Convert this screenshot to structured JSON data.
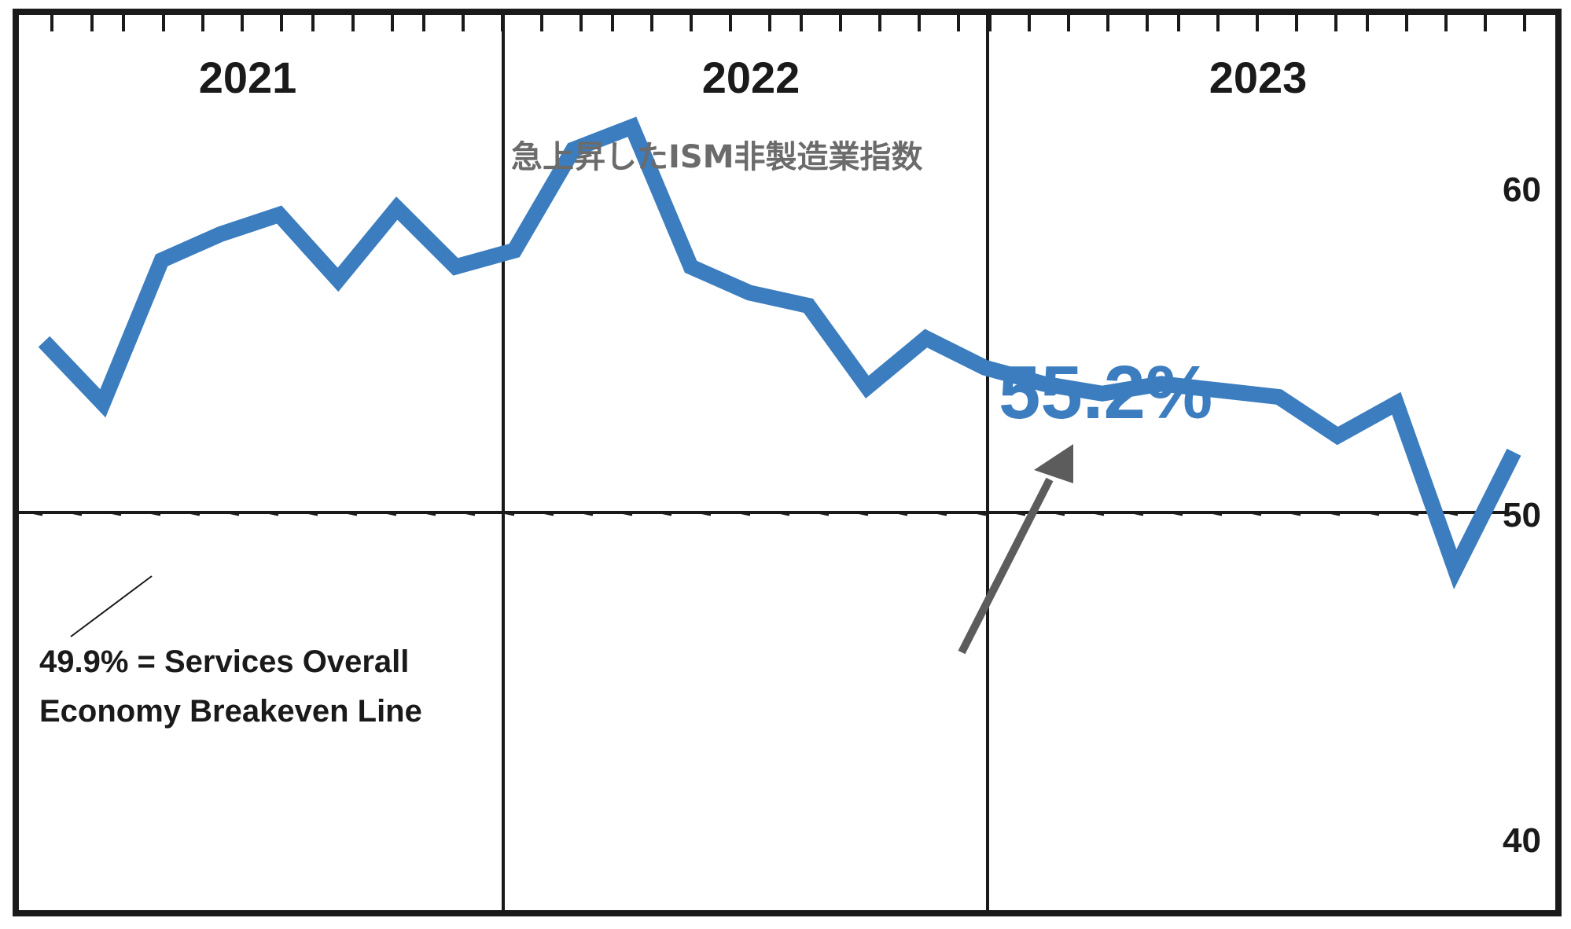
{
  "chart_data": {
    "type": "line",
    "title": "急上昇したISM非製造業指数",
    "year_labels": [
      "2021",
      "2022",
      "2023"
    ],
    "yticks": [
      60,
      50,
      40
    ],
    "ylim": [
      37.5,
      65
    ],
    "x_range": [
      0,
      36
    ],
    "reference_line": {
      "y": 49.9,
      "label_lines": [
        "49.9% = Services Overall",
        "Economy Breakeven Line"
      ]
    },
    "callout": "55.2%",
    "series": [
      {
        "x": [
          0,
          1,
          2,
          3,
          4,
          5,
          6,
          7,
          8,
          9,
          10,
          11,
          12,
          13,
          14,
          15,
          16,
          17,
          18,
          19,
          20,
          21,
          22,
          23,
          24,
          25
        ],
        "values": [
          55.3,
          53.4,
          57.8,
          58.6,
          59.2,
          57.2,
          59.4,
          57.6,
          58.1,
          61.2,
          61.9,
          57.6,
          56.8,
          56.4,
          53.9,
          55.4,
          54.5,
          54.0,
          53.7,
          54.0,
          53.8,
          53.6,
          52.4,
          53.4,
          48.3,
          51.9
        ]
      }
    ],
    "colors": {
      "line": "#3b7dbf",
      "arrow": "#5c5c5c",
      "frame": "#1a1a1a"
    }
  }
}
